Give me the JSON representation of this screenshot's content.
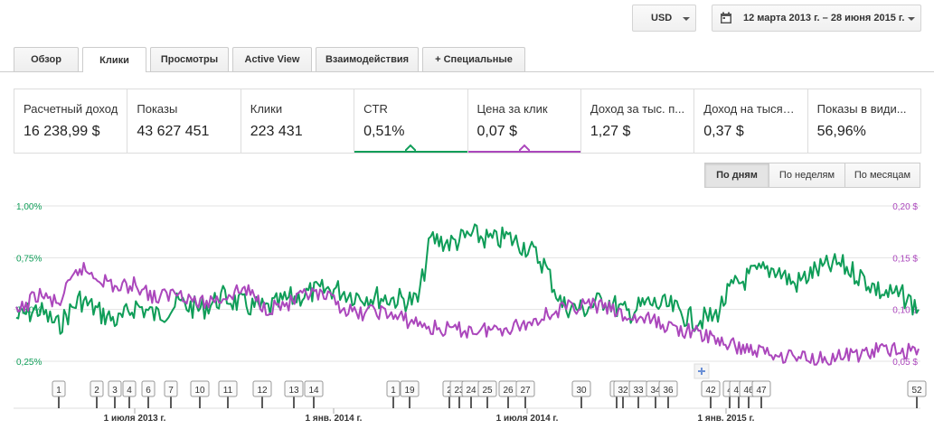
{
  "header": {
    "currency": "USD",
    "date_range": "12 марта 2013 г. – 28 июня 2015 г."
  },
  "tabs": [
    {
      "label": "Обзор",
      "active": false
    },
    {
      "label": "Клики",
      "active": true
    },
    {
      "label": "Просмотры",
      "active": false
    },
    {
      "label": "Active View",
      "active": false
    },
    {
      "label": "Взаимодействия",
      "active": false
    },
    {
      "label": "+ Специальные",
      "active": false
    }
  ],
  "metrics": [
    {
      "label": "Расчетный доход",
      "value": "16 238,99 $"
    },
    {
      "label": "Показы",
      "value": "43 627 451"
    },
    {
      "label": "Клики",
      "value": "223 431"
    },
    {
      "label": "CTR",
      "value": "0,51%",
      "selected_color": "#0f9d58"
    },
    {
      "label": "Цена за клик",
      "value": "0,07 $",
      "selected_color": "#ab47bc"
    },
    {
      "label": "Доход за тыс. п...",
      "value": "1,27 $"
    },
    {
      "label": "Доход на тысяч...",
      "value": "0,37 $"
    },
    {
      "label": "Показы в види...",
      "value": "56,96%"
    }
  ],
  "periods": [
    {
      "label": "По дням",
      "active": true
    },
    {
      "label": "По неделям",
      "active": false
    },
    {
      "label": "По месяцам",
      "active": false
    }
  ],
  "chart_data": {
    "type": "line",
    "x_start": "2013-03-12",
    "x_end": "2015-06-28",
    "left_axis": {
      "ticks": [
        "1,00%",
        "0,75%",
        "0,50%",
        "0,25%"
      ],
      "color": "#0f9d58",
      "ylim": [
        0.25,
        1.0
      ]
    },
    "right_axis": {
      "ticks": [
        "0,20 $",
        "0,15 $",
        "0,10 $",
        "0,05 $"
      ],
      "color": "#ab47bc",
      "ylim": [
        0.05,
        0.2
      ]
    },
    "x_ticks": [
      "1 июля 2013 г.",
      "1 янв. 2014 г.",
      "1 июля 2014 г.",
      "1 янв. 2015 г."
    ],
    "grid": true,
    "series": [
      {
        "name": "CTR",
        "color": "#0f9d58",
        "axis": "left",
        "x": [
          "2013-03-12",
          "2013-04-01",
          "2013-04-20",
          "2013-05-10",
          "2013-05-30",
          "2013-06-15",
          "2013-07-01",
          "2013-07-20",
          "2013-08-10",
          "2013-08-30",
          "2013-09-20",
          "2013-10-10",
          "2013-10-30",
          "2013-11-20",
          "2013-12-10",
          "2014-01-01",
          "2014-01-20",
          "2014-02-10",
          "2014-03-01",
          "2014-03-20",
          "2014-04-01",
          "2014-04-20",
          "2014-05-10",
          "2014-05-30",
          "2014-06-10",
          "2014-06-30",
          "2014-07-15",
          "2014-08-01",
          "2014-08-20",
          "2014-09-10",
          "2014-09-30",
          "2014-10-20",
          "2014-11-10",
          "2014-11-30",
          "2014-12-20",
          "2015-01-05",
          "2015-01-25",
          "2015-02-15",
          "2015-03-05",
          "2015-03-25",
          "2015-04-15",
          "2015-05-05",
          "2015-05-25",
          "2015-06-15",
          "2015-06-28"
        ],
        "values": [
          0.46,
          0.5,
          0.42,
          0.55,
          0.48,
          0.44,
          0.52,
          0.47,
          0.53,
          0.5,
          0.56,
          0.52,
          0.5,
          0.55,
          0.58,
          0.6,
          0.57,
          0.56,
          0.55,
          0.54,
          0.84,
          0.82,
          0.86,
          0.83,
          0.85,
          0.8,
          0.72,
          0.52,
          0.5,
          0.55,
          0.48,
          0.53,
          0.51,
          0.45,
          0.46,
          0.6,
          0.67,
          0.7,
          0.62,
          0.69,
          0.72,
          0.66,
          0.58,
          0.56,
          0.5
        ]
      },
      {
        "name": "Цена за клик",
        "color": "#ab47bc",
        "axis": "right",
        "x": [
          "2013-03-12",
          "2013-04-01",
          "2013-04-20",
          "2013-05-10",
          "2013-05-30",
          "2013-06-15",
          "2013-07-01",
          "2013-07-20",
          "2013-08-10",
          "2013-08-30",
          "2013-09-20",
          "2013-10-10",
          "2013-10-30",
          "2013-11-20",
          "2013-12-10",
          "2014-01-01",
          "2014-01-20",
          "2014-02-10",
          "2014-03-01",
          "2014-03-20",
          "2014-04-01",
          "2014-04-20",
          "2014-05-10",
          "2014-05-30",
          "2014-06-10",
          "2014-06-30",
          "2014-07-15",
          "2014-08-01",
          "2014-08-20",
          "2014-09-10",
          "2014-09-30",
          "2014-10-20",
          "2014-11-10",
          "2014-11-30",
          "2014-12-20",
          "2015-01-05",
          "2015-01-25",
          "2015-02-15",
          "2015-03-05",
          "2015-03-25",
          "2015-04-15",
          "2015-05-05",
          "2015-05-25",
          "2015-06-15",
          "2015-06-28"
        ],
        "values": [
          0.095,
          0.115,
          0.105,
          0.14,
          0.13,
          0.12,
          0.125,
          0.11,
          0.118,
          0.105,
          0.112,
          0.12,
          0.102,
          0.105,
          0.115,
          0.108,
          0.095,
          0.099,
          0.092,
          0.087,
          0.082,
          0.08,
          0.08,
          0.081,
          0.083,
          0.086,
          0.095,
          0.1,
          0.105,
          0.102,
          0.092,
          0.09,
          0.083,
          0.078,
          0.072,
          0.065,
          0.061,
          0.057,
          0.055,
          0.053,
          0.054,
          0.057,
          0.061,
          0.06,
          0.062
        ]
      }
    ],
    "annotations": [
      "1",
      "2",
      "3",
      "4",
      "6",
      "7",
      "10",
      "11",
      "12",
      "13",
      "14",
      "1",
      "19",
      "2",
      "23",
      "24",
      "25",
      "26",
      "27",
      "30",
      "3",
      "32",
      "33",
      "34",
      "36",
      "42",
      "4",
      "45",
      "46",
      "47",
      "52"
    ]
  }
}
